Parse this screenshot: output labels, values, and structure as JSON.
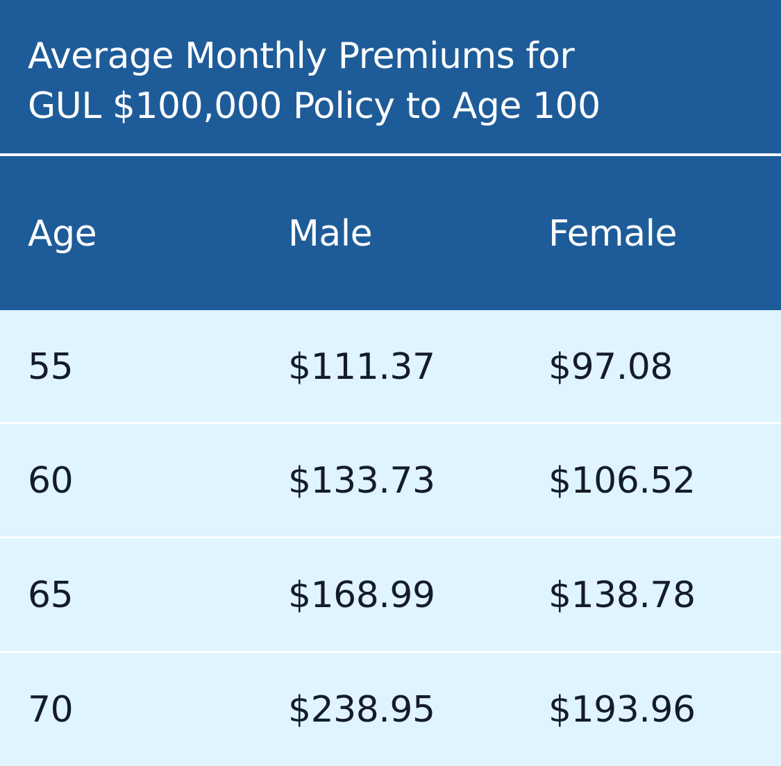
{
  "chart_data": {
    "type": "table",
    "title_lines": [
      "Average Monthly Premiums for",
      "GUL $100,000 Policy to Age 100"
    ],
    "columns": [
      "Age",
      "Male",
      "Female"
    ],
    "rows": [
      [
        "55",
        "$111.37",
        "$97.08"
      ],
      [
        "60",
        "$133.73",
        "$106.52"
      ],
      [
        "65",
        "$168.99",
        "$138.78"
      ],
      [
        "70",
        "$238.95",
        "$193.96"
      ]
    ],
    "colors": {
      "header_bg": "#1e5c99",
      "row_bg": "#dff4fd",
      "header_text": "#ffffff",
      "body_text": "#141b29"
    }
  }
}
